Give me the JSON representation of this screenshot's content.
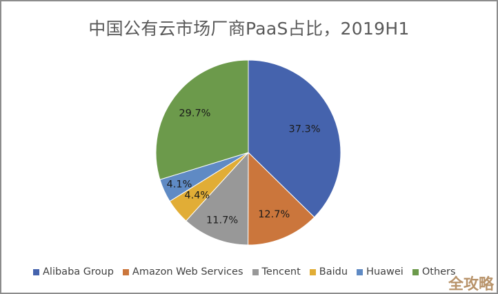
{
  "chart_data": {
    "type": "pie",
    "title": "中国公有云市场厂商PaaS占比，2019H1",
    "categories": [
      "Alibaba Group",
      "Amazon Web Services",
      "Tencent",
      "Baidu",
      "Huawei",
      "Others"
    ],
    "values": [
      37.3,
      12.7,
      11.7,
      4.4,
      4.1,
      29.7
    ],
    "labels": [
      "37.3%",
      "12.7%",
      "11.7%",
      "4.4%",
      "4.1%",
      "29.7%"
    ],
    "colors": [
      "#4563ad",
      "#cb763c",
      "#989898",
      "#e1ad36",
      "#5f8ac4",
      "#6c9a4b"
    ],
    "start_angle_deg": 0,
    "direction": "clockwise",
    "legend_position": "bottom",
    "unit": "%"
  },
  "legend": [
    {
      "label": "Alibaba Group",
      "color": "#4563ad"
    },
    {
      "label": "Amazon Web Services",
      "color": "#cb763c"
    },
    {
      "label": "Tencent",
      "color": "#989898"
    },
    {
      "label": "Baidu",
      "color": "#e1ad36"
    },
    {
      "label": "Huawei",
      "color": "#5f8ac4"
    },
    {
      "label": "Others",
      "color": "#6c9a4b"
    }
  ],
  "watermark": "全攻略"
}
